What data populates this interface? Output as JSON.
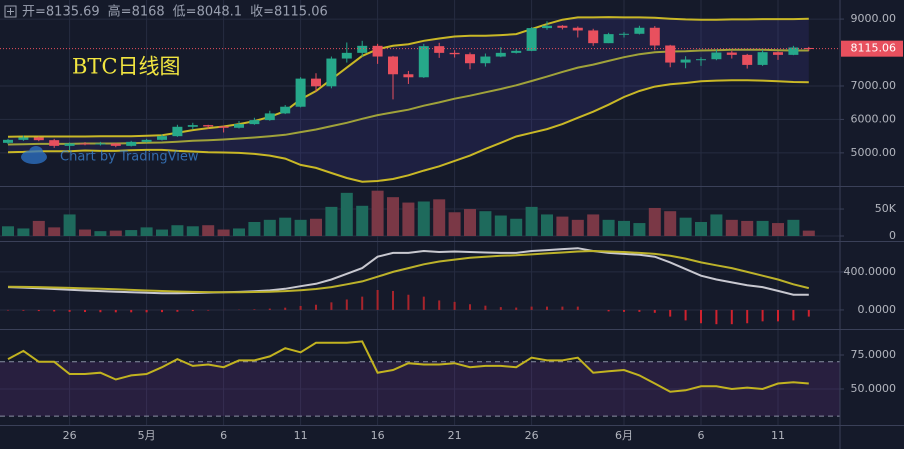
{
  "chart_data": {
    "type": "candlestick",
    "title": "BTC日线图",
    "watermark": "Chart by TradingView",
    "header": [
      {
        "label": "开=",
        "value": 8135.69
      },
      {
        "label": "高=",
        "value": 8168.0
      },
      {
        "label": "低=",
        "value": 8048.1
      },
      {
        "label": "收=",
        "value": 8115.06
      }
    ],
    "categories": [
      null,
      null,
      null,
      null,
      "26",
      null,
      null,
      null,
      null,
      "5月",
      null,
      null,
      null,
      null,
      "6",
      null,
      null,
      null,
      null,
      "11",
      null,
      null,
      null,
      null,
      "16",
      null,
      null,
      null,
      null,
      "21",
      null,
      null,
      null,
      null,
      "26",
      null,
      null,
      null,
      null,
      null,
      "6月",
      null,
      null,
      null,
      null,
      "6",
      null,
      null,
      null,
      null,
      "11",
      null,
      null
    ],
    "open": [
      5300,
      5390,
      5460,
      5380,
      5210,
      5280,
      5270,
      5280,
      5210,
      5330,
      5390,
      5500,
      5780,
      5830,
      5790,
      5750,
      5860,
      5980,
      6180,
      6380,
      7220,
      6990,
      7820,
      7990,
      8200,
      7880,
      7350,
      7260,
      8190,
      7990,
      7950,
      7680,
      7880,
      7990,
      8050,
      8730,
      8800,
      8740,
      8660,
      8280,
      8550,
      8560,
      8740,
      8210,
      7700,
      7790,
      7800,
      8000,
      7930,
      7630,
      8010,
      7930,
      8135.69
    ],
    "high": [
      5420,
      5520,
      5490,
      5420,
      5310,
      5320,
      5330,
      5300,
      5360,
      5420,
      5550,
      5840,
      5900,
      5840,
      5810,
      5950,
      6050,
      6260,
      6430,
      7260,
      7380,
      7880,
      8300,
      8350,
      8260,
      7900,
      7450,
      8260,
      8290,
      8070,
      8000,
      7970,
      8160,
      8110,
      8760,
      8930,
      8820,
      8780,
      8710,
      8590,
      8610,
      8800,
      8790,
      8230,
      7890,
      7860,
      8090,
      8050,
      7960,
      8080,
      8030,
      8200,
      8168.0
    ],
    "low": [
      5260,
      5360,
      5350,
      5150,
      5080,
      5230,
      5220,
      5170,
      5190,
      5310,
      5370,
      5480,
      5700,
      5720,
      5610,
      5730,
      5840,
      5960,
      6160,
      6360,
      6830,
      6930,
      7700,
      7880,
      7660,
      6600,
      7060,
      7240,
      7840,
      7850,
      7500,
      7580,
      7860,
      7970,
      8040,
      8680,
      8690,
      8450,
      8200,
      8280,
      8450,
      8540,
      8070,
      7560,
      7530,
      7600,
      7770,
      7820,
      7520,
      7600,
      7780,
      7920,
      8048.1
    ],
    "close": [
      5390,
      5460,
      5380,
      5210,
      5280,
      5270,
      5280,
      5210,
      5330,
      5390,
      5500,
      5780,
      5830,
      5790,
      5750,
      5860,
      5980,
      6180,
      6380,
      7220,
      6990,
      7820,
      7990,
      8200,
      7880,
      7350,
      7260,
      8190,
      7990,
      7950,
      7680,
      7880,
      7990,
      8050,
      8730,
      8800,
      8740,
      8660,
      8280,
      8550,
      8560,
      8740,
      8210,
      7700,
      7790,
      7800,
      8000,
      7930,
      7630,
      8010,
      7930,
      8150,
      8115.06
    ],
    "up_color": "#26a88a",
    "down_color": "#e8505e",
    "ylim": [
      4040,
      9570
    ],
    "yticks": [
      {
        "value": 9000,
        "label": "9000.00"
      },
      {
        "value": 7000,
        "label": "7000.00"
      },
      {
        "value": 6000,
        "label": "6000.00"
      },
      {
        "value": 5000,
        "label": "5000.00"
      }
    ],
    "grid": true,
    "overlays": [
      {
        "color": "#c9b826",
        "values": [
          5480,
          5490,
          5490,
          5490,
          5490,
          5490,
          5500,
          5500,
          5500,
          5510,
          5530,
          5600,
          5680,
          5740,
          5790,
          5860,
          5950,
          6080,
          6250,
          6600,
          6850,
          7200,
          7550,
          7900,
          8100,
          8200,
          8250,
          8350,
          8420,
          8480,
          8500,
          8500,
          8520,
          8550,
          8700,
          8850,
          8980,
          9050,
          9050,
          9060,
          9050,
          9050,
          9040,
          9010,
          8990,
          8980,
          8980,
          8990,
          8990,
          9000,
          9000,
          9000,
          9010
        ]
      },
      {
        "color": "#a0a23a",
        "values": [
          5250,
          5260,
          5270,
          5270,
          5270,
          5280,
          5280,
          5280,
          5290,
          5300,
          5310,
          5330,
          5360,
          5380,
          5400,
          5430,
          5460,
          5500,
          5540,
          5620,
          5700,
          5800,
          5900,
          6020,
          6130,
          6210,
          6290,
          6410,
          6510,
          6620,
          6710,
          6810,
          6910,
          7020,
          7150,
          7280,
          7420,
          7550,
          7640,
          7750,
          7860,
          7950,
          8010,
          8030,
          8040,
          8060,
          8070,
          8080,
          8080,
          8080,
          8070,
          8060,
          8060
        ]
      },
      {
        "color": "#c9b826",
        "values": [
          5020,
          5030,
          5050,
          5050,
          5050,
          5070,
          5060,
          5060,
          5080,
          5090,
          5090,
          5060,
          5040,
          5020,
          5010,
          5000,
          4970,
          4920,
          4830,
          4640,
          4550,
          4400,
          4250,
          4140,
          4160,
          4220,
          4330,
          4470,
          4600,
          4760,
          4920,
          5120,
          5300,
          5490,
          5600,
          5710,
          5860,
          6050,
          6230,
          6440,
          6670,
          6850,
          6980,
          7050,
          7090,
          7140,
          7160,
          7170,
          7170,
          7160,
          7140,
          7120,
          7110
        ]
      }
    ],
    "volume": {
      "values": [
        18000,
        14000,
        28000,
        16000,
        40000,
        12000,
        9000,
        10000,
        11000,
        16000,
        12000,
        20000,
        18000,
        20000,
        12000,
        14000,
        26000,
        30000,
        34000,
        30000,
        32000,
        54000,
        80000,
        56000,
        84000,
        72000,
        62000,
        64000,
        68000,
        44000,
        50000,
        46000,
        38000,
        32000,
        54000,
        40000,
        36000,
        30000,
        40000,
        30000,
        28000,
        24000,
        52000,
        46000,
        34000,
        26000,
        40000,
        30000,
        28000,
        28000,
        24000,
        30000,
        10000
      ],
      "up_color": "#1e6a5c",
      "down_color": "#7a3846",
      "ylim": [
        -7400,
        89000
      ],
      "yticks": [
        {
          "value": 50000,
          "label": "50K"
        },
        0
      ]
    },
    "macd": {
      "series": [
        {
          "color": "#c8c8d0",
          "values": [
            240,
            235,
            228,
            220,
            212,
            205,
            198,
            192,
            186,
            180,
            176,
            175,
            178,
            182,
            186,
            190,
            196,
            206,
            222,
            250,
            275,
            320,
            380,
            440,
            560,
            600,
            600,
            620,
            610,
            615,
            610,
            605,
            600,
            600,
            620,
            630,
            640,
            650,
            620,
            600,
            590,
            580,
            560,
            500,
            430,
            360,
            320,
            290,
            260,
            240,
            200,
            160,
            160
          ]
        },
        {
          "color": "#bcb22a",
          "values": [
            245,
            243,
            240,
            236,
            232,
            227,
            222,
            217,
            211,
            205,
            199,
            194,
            190,
            188,
            187,
            187,
            189,
            192,
            198,
            208,
            220,
            240,
            270,
            300,
            350,
            400,
            440,
            480,
            510,
            530,
            550,
            560,
            570,
            575,
            585,
            595,
            605,
            615,
            620,
            615,
            610,
            600,
            590,
            570,
            540,
            500,
            470,
            440,
            400,
            360,
            320,
            270,
            230
          ]
        }
      ],
      "histogram": [
        -5,
        -8,
        -12,
        -16,
        -20,
        -22,
        -24,
        -25,
        -25,
        -25,
        -23,
        -19,
        -12,
        -6,
        -1,
        3,
        7,
        14,
        24,
        42,
        55,
        80,
        110,
        140,
        210,
        200,
        160,
        140,
        100,
        85,
        60,
        45,
        30,
        25,
        35,
        35,
        35,
        35,
        0,
        -15,
        -20,
        -20,
        -30,
        -70,
        -110,
        -140,
        -150,
        -150,
        -140,
        -120,
        -120,
        -110,
        -70
      ],
      "up_color": "#a8242c",
      "down_color": "#d0222e",
      "ylim": [
        -190,
        715
      ],
      "yticks": [
        {
          "value": 400,
          "label": "400.0000"
        },
        {
          "value": 0,
          "label": "0.0000"
        }
      ]
    },
    "rsi": {
      "color": "#c2b320",
      "values": [
        72,
        78,
        70,
        70,
        61,
        61,
        62,
        57,
        60,
        61,
        66,
        72,
        67,
        68,
        66,
        71,
        71,
        74,
        80,
        77,
        84,
        84,
        84,
        85,
        62,
        64,
        69,
        68,
        68,
        69,
        66,
        67,
        67,
        66,
        73,
        71,
        71,
        73,
        62,
        63,
        64,
        60,
        54,
        48,
        49,
        52,
        52,
        50,
        51,
        50,
        54,
        55,
        54
      ],
      "levels": [
        30,
        70
      ],
      "ylim": [
        23.5,
        93.4
      ],
      "yticks": [
        {
          "value": 75,
          "label": "75.0000"
        },
        {
          "value": 50,
          "label": "50.0000"
        }
      ]
    }
  }
}
